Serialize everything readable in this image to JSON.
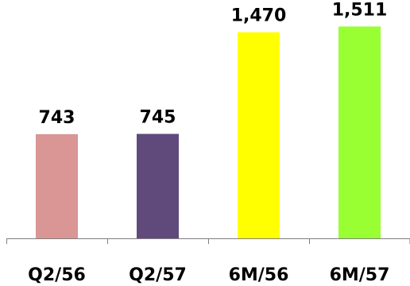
{
  "chart_data": {
    "type": "bar",
    "categories": [
      "Q2/56",
      "Q2/57",
      "6M/56",
      "6M/57"
    ],
    "values": [
      743,
      745,
      1470,
      1511
    ],
    "value_labels": [
      "743",
      "745",
      "1,470",
      "1,511"
    ],
    "colors": [
      "#d99694",
      "#604a7b",
      "#ffff00",
      "#99ff33"
    ],
    "title": "",
    "xlabel": "",
    "ylabel": "",
    "ylim": [
      0,
      1700
    ],
    "grid": false,
    "legend": "none"
  }
}
